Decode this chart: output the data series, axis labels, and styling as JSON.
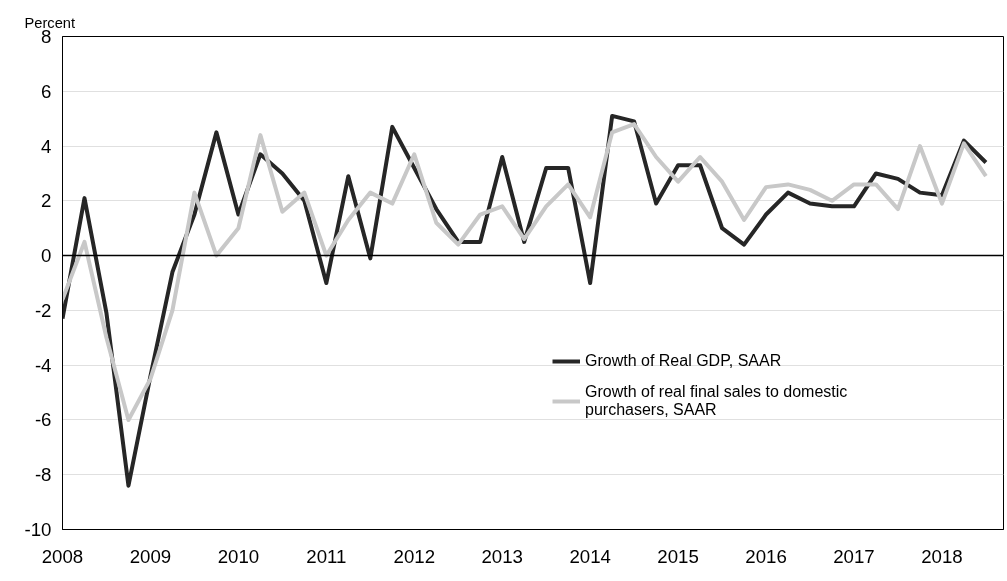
{
  "chart_data": {
    "type": "line",
    "ylabel": "Percent",
    "x": [
      2008,
      2008.25,
      2008.5,
      2008.75,
      2009,
      2009.25,
      2009.5,
      2009.75,
      2010,
      2010.25,
      2010.5,
      2010.75,
      2011,
      2011.25,
      2011.5,
      2011.75,
      2012,
      2012.25,
      2012.5,
      2012.75,
      2013,
      2013.25,
      2013.5,
      2013.75,
      2014,
      2014.25,
      2014.5,
      2014.75,
      2015,
      2015.25,
      2015.5,
      2015.75,
      2016,
      2016.25,
      2016.5,
      2016.75,
      2017,
      2017.25,
      2017.5,
      2017.75,
      2018,
      2018.25,
      2018.5
    ],
    "series": [
      {
        "name": "Growth of Real GDP, SAAR",
        "color": "#262626",
        "values": [
          -2.3,
          2.1,
          -2.1,
          -8.4,
          -4.4,
          -0.6,
          1.5,
          4.5,
          1.5,
          3.7,
          3.0,
          2.0,
          -1.0,
          2.9,
          -0.1,
          4.7,
          3.2,
          1.7,
          0.5,
          0.5,
          3.6,
          0.5,
          3.2,
          3.2,
          -1.0,
          5.1,
          4.9,
          1.9,
          3.3,
          3.3,
          1.0,
          0.4,
          1.5,
          2.3,
          1.9,
          1.8,
          1.8,
          3.0,
          2.8,
          2.3,
          2.2,
          4.2,
          3.4
        ]
      },
      {
        "name": "Growth of real final sales to domestic purchasers, SAAR",
        "color": "#c8c8c8",
        "values": [
          -1.6,
          0.5,
          -3.0,
          -6.0,
          -4.5,
          -2.0,
          2.3,
          0.0,
          1.0,
          4.4,
          1.6,
          2.3,
          0.0,
          1.3,
          2.3,
          1.9,
          3.7,
          1.2,
          0.4,
          1.5,
          1.8,
          0.6,
          1.8,
          2.6,
          1.4,
          4.5,
          4.8,
          3.6,
          2.7,
          3.6,
          2.7,
          1.3,
          2.5,
          2.6,
          2.4,
          2.0,
          2.6,
          2.6,
          1.7,
          4.0,
          1.9,
          4.1,
          2.9
        ]
      }
    ],
    "xlim": [
      2008,
      2018.7
    ],
    "xticks": [
      2008,
      2009,
      2010,
      2011,
      2012,
      2013,
      2014,
      2015,
      2016,
      2017,
      2018
    ],
    "ylim": [
      -10,
      8
    ],
    "yticks": [
      -10,
      -8,
      -6,
      -4,
      -2,
      0,
      2,
      4,
      6,
      8
    ],
    "ref_lines": [
      {
        "axis": "y",
        "value": 0,
        "color": "#000000"
      }
    ],
    "grid": "y",
    "legend": "right",
    "line_style": "solid"
  }
}
